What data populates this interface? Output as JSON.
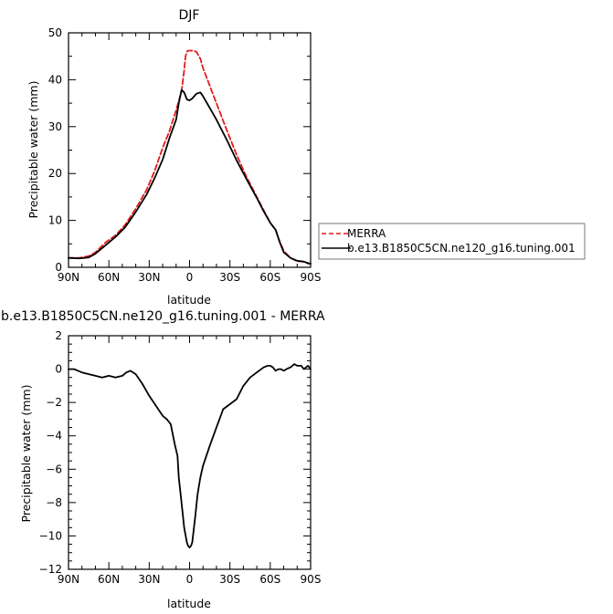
{
  "figure": {
    "background": "#ffffff"
  },
  "chart_data": [
    {
      "type": "line",
      "title": "DJF",
      "xlabel": "latitude",
      "ylabel": "Precipitable water (mm)",
      "xlim": [
        90,
        -90
      ],
      "ylim": [
        0,
        50
      ],
      "xticks": [
        90,
        60,
        30,
        0,
        -30,
        -60,
        -90
      ],
      "xticklabels": [
        "90N",
        "60N",
        "30N",
        "0",
        "30S",
        "60S",
        "90S"
      ],
      "yticks": [
        0,
        10,
        20,
        30,
        40,
        50
      ],
      "yticklabels": [
        "0",
        "10",
        "20",
        "30",
        "40",
        "50"
      ],
      "grid": false,
      "legend": "outside-right",
      "series": [
        {
          "name": "MERRA",
          "color": "#e41a1c",
          "dash": "dashed",
          "x": [
            90,
            82,
            75,
            70,
            62,
            55,
            48,
            40,
            32,
            26,
            20,
            15,
            10,
            6,
            4,
            3,
            2,
            1,
            0,
            -2,
            -5,
            -8,
            -10,
            -14,
            -20,
            -28,
            -35,
            -42,
            -50,
            -55,
            -60,
            -64,
            -67,
            -70,
            -75,
            -80,
            -85,
            -88,
            -90
          ],
          "y": [
            2.0,
            2.0,
            2.4,
            3.2,
            5.4,
            6.8,
            9.0,
            12.5,
            16.5,
            20.5,
            25.5,
            29.0,
            33.5,
            37.5,
            42.0,
            45.0,
            46.0,
            46.2,
            46.2,
            46.2,
            46.0,
            44.5,
            42.5,
            39.5,
            35.0,
            29.0,
            24.0,
            19.5,
            15.0,
            12.2,
            9.5,
            8.0,
            5.5,
            3.5,
            2.0,
            1.3,
            1.2,
            0.8,
            0.7
          ]
        },
        {
          "name": "b.e13.B1850C5CN.ne120_g16.tuning.001",
          "color": "#000000",
          "dash": "solid",
          "x": [
            90,
            82,
            75,
            70,
            62,
            55,
            48,
            40,
            32,
            26,
            20,
            15,
            10,
            8,
            6,
            4,
            2,
            0,
            -2,
            -5,
            -8,
            -10,
            -14,
            -20,
            -28,
            -35,
            -42,
            -50,
            -55,
            -60,
            -64,
            -67,
            -70,
            -75,
            -80,
            -85,
            -88,
            -90
          ],
          "y": [
            2.0,
            1.9,
            2.1,
            2.9,
            4.8,
            6.5,
            8.5,
            11.8,
            15.5,
            19.0,
            23.0,
            27.5,
            31.5,
            35.0,
            37.8,
            37.3,
            35.8,
            35.6,
            36.0,
            37.0,
            37.3,
            36.5,
            34.5,
            31.5,
            27.0,
            22.8,
            19.0,
            14.8,
            12.0,
            9.5,
            8.0,
            5.4,
            3.2,
            2.0,
            1.4,
            1.2,
            0.9,
            0.8
          ]
        }
      ]
    },
    {
      "type": "line",
      "title": "b.e13.B1850C5CN.ne120_g16.tuning.001 - MERRA",
      "xlabel": "latitude",
      "ylabel": "Precipitable water (mm)",
      "xlim": [
        90,
        -90
      ],
      "ylim": [
        -12,
        2
      ],
      "xticks": [
        90,
        60,
        30,
        0,
        -30,
        -60,
        -90
      ],
      "xticklabels": [
        "90N",
        "60N",
        "30N",
        "0",
        "30S",
        "60S",
        "90S"
      ],
      "yticks": [
        2,
        0,
        -2,
        -4,
        -6,
        -8,
        -10,
        -12
      ],
      "yticklabels": [
        "2",
        "0",
        "−2",
        "−4",
        "−6",
        "−8",
        "−10",
        "−12"
      ],
      "grid": false,
      "series": [
        {
          "color": "#000000",
          "dash": "solid",
          "x": [
            90,
            86,
            80,
            75,
            70,
            65,
            60,
            55,
            50,
            47,
            44,
            40,
            35,
            30,
            25,
            20,
            17,
            14,
            11,
            9,
            8,
            6,
            4,
            2,
            1,
            0,
            -1,
            -2,
            -4,
            -6,
            -8,
            -10,
            -15,
            -20,
            -25,
            -30,
            -35,
            -40,
            -45,
            -50,
            -55,
            -58,
            -60,
            -62,
            -64,
            -66,
            -68,
            -70,
            -72,
            -75,
            -78,
            -80,
            -83,
            -85,
            -88,
            -90
          ],
          "y": [
            0.0,
            0.0,
            -0.2,
            -0.3,
            -0.4,
            -0.5,
            -0.4,
            -0.5,
            -0.4,
            -0.2,
            -0.1,
            -0.3,
            -0.9,
            -1.6,
            -2.2,
            -2.8,
            -3.0,
            -3.3,
            -4.5,
            -5.2,
            -6.5,
            -8.0,
            -9.5,
            -10.4,
            -10.6,
            -10.7,
            -10.6,
            -10.4,
            -9.0,
            -7.5,
            -6.5,
            -5.8,
            -4.6,
            -3.5,
            -2.4,
            -2.1,
            -1.8,
            -1.0,
            -0.5,
            -0.2,
            0.1,
            0.2,
            0.2,
            0.1,
            -0.1,
            0.0,
            0.0,
            -0.1,
            0.0,
            0.1,
            0.3,
            0.2,
            0.2,
            0.0,
            0.2,
            0.0
          ]
        }
      ]
    }
  ]
}
